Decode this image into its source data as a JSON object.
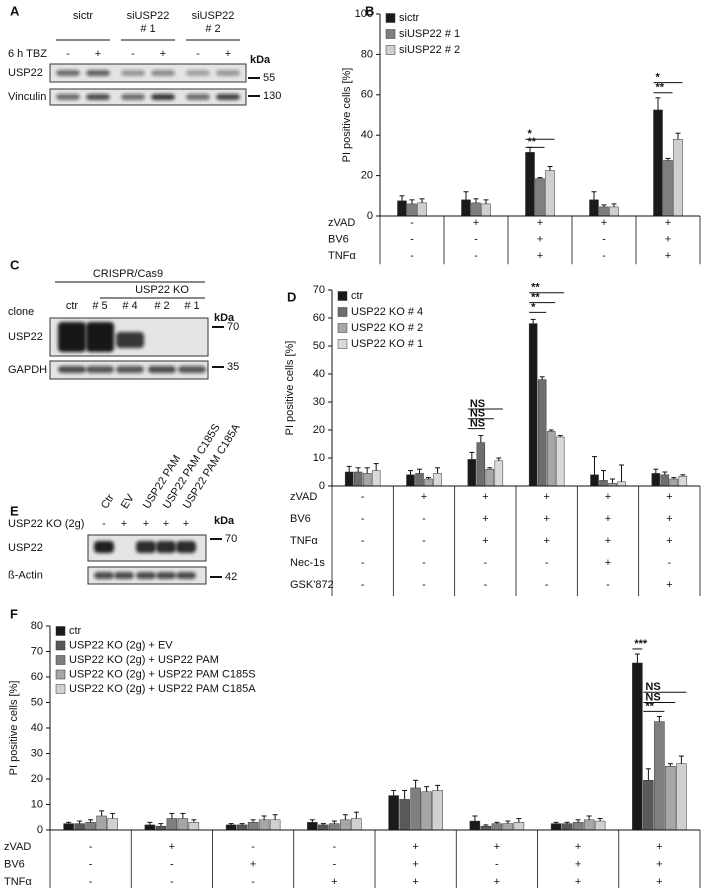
{
  "blot_A": {
    "label": "A",
    "lane_groups": [
      [
        "sictr"
      ],
      [
        "siUSP22",
        "# 1"
      ],
      [
        "siUSP22",
        "# 2"
      ]
    ],
    "treatment": {
      "name": "6 h TBZ",
      "values": [
        "-",
        "+",
        "-",
        "+",
        "-",
        "+"
      ]
    },
    "rows": [
      "USP22",
      "Vinculin"
    ],
    "kda_unit": "kDa",
    "markers": [
      55,
      130
    ]
  },
  "blot_C": {
    "label": "C",
    "method": "CRISPR/Cas9",
    "group": "USP22 KO",
    "lane_title": "clone",
    "lanes": [
      "ctr",
      "# 5",
      "# 4",
      "# 2",
      "# 1"
    ],
    "rows": [
      "USP22",
      "GAPDH"
    ],
    "kda_unit": "kDa",
    "markers": [
      70,
      35
    ]
  },
  "blot_E": {
    "label": "E",
    "lanes": [
      "Ctr",
      "EV",
      "USP22 PAM",
      "USP22 PAM C185S",
      "USP22 PAM C185A"
    ],
    "treatment": {
      "name": "USP22 KO (2g)",
      "values": [
        "-",
        "+",
        "+",
        "+",
        "+"
      ]
    },
    "rows": [
      "USP22",
      "ß-Actin"
    ],
    "kda_unit": "kDa",
    "markers": [
      70,
      42
    ]
  },
  "chart_data": [
    {
      "type": "bar",
      "label": "B",
      "ylabel": "PI positive cells [%]",
      "ylim": [
        0,
        100
      ],
      "yticks": [
        0,
        20,
        40,
        60,
        80,
        100
      ],
      "grid": false,
      "series": [
        {
          "name": "sictr",
          "color": "#1a1a1a",
          "values": [
            7.5,
            8,
            31.5,
            8,
            52.5
          ],
          "errors": [
            2.5,
            4,
            2.5,
            4,
            6
          ]
        },
        {
          "name": "siUSP22 # 1",
          "color": "#7f7f7f",
          "values": [
            6,
            6.5,
            18.5,
            4.5,
            27.5
          ],
          "errors": [
            2,
            2,
            0.5,
            1,
            1
          ]
        },
        {
          "name": "siUSP22 # 2",
          "color": "#cfcfcf",
          "values": [
            6.5,
            6,
            22.5,
            4.5,
            38
          ],
          "errors": [
            2,
            2,
            2,
            1.5,
            3
          ]
        }
      ],
      "conditions": [
        {
          "name": "zVAD",
          "values": [
            "-",
            "+",
            "+",
            "+",
            "+"
          ]
        },
        {
          "name": "BV6",
          "values": [
            "-",
            "-",
            "+",
            "-",
            "+"
          ]
        },
        {
          "name": "TNFα",
          "values": [
            "-",
            "-",
            "+",
            "-",
            "+"
          ]
        }
      ],
      "annotations": [
        "*",
        "**",
        "*",
        "**"
      ]
    },
    {
      "type": "bar",
      "label": "D",
      "ylabel": "PI positive cells [%]",
      "ylim": [
        0,
        70
      ],
      "yticks": [
        0,
        10,
        20,
        30,
        40,
        50,
        60,
        70
      ],
      "grid": false,
      "series": [
        {
          "name": "ctr",
          "color": "#1a1a1a",
          "values": [
            5,
            4,
            9.5,
            58,
            4,
            4.5
          ],
          "errors": [
            2,
            1.5,
            2.5,
            1.5,
            6.5,
            1.5
          ]
        },
        {
          "name": "USP22 KO # 4",
          "color": "#6e6e6e",
          "values": [
            5,
            4.5,
            15.5,
            38,
            2,
            4
          ],
          "errors": [
            1.5,
            1.5,
            2.5,
            1,
            3.5,
            1
          ]
        },
        {
          "name": "USP22 KO # 2",
          "color": "#a6a6a6",
          "values": [
            4.5,
            2.5,
            6,
            19.5,
            1,
            2.5
          ],
          "errors": [
            2,
            0.5,
            0.5,
            0.5,
            1.5,
            0.5
          ]
        },
        {
          "name": "USP22 KO # 1",
          "color": "#d9d9d9",
          "values": [
            5.5,
            4.5,
            9,
            17.5,
            1.5,
            3.5
          ],
          "errors": [
            2.5,
            2,
            1,
            0.5,
            6,
            0.5
          ]
        }
      ],
      "conditions": [
        {
          "name": "zVAD",
          "values": [
            "-",
            "+",
            "+",
            "+",
            "+",
            "+"
          ]
        },
        {
          "name": "BV6",
          "values": [
            "-",
            "-",
            "+",
            "+",
            "+",
            "+"
          ]
        },
        {
          "name": "TNFα",
          "values": [
            "-",
            "-",
            "+",
            "+",
            "+",
            "+"
          ]
        },
        {
          "name": "Nec-1s",
          "values": [
            "-",
            "-",
            "-",
            "-",
            "+",
            "-"
          ]
        },
        {
          "name": "GSK'872",
          "values": [
            "-",
            "-",
            "-",
            "-",
            "-",
            "+"
          ]
        }
      ],
      "annotations": [
        "NS",
        "NS",
        "NS",
        "**",
        "**",
        "*"
      ]
    },
    {
      "type": "bar",
      "label": "F",
      "ylabel": "PI positive cells [%]",
      "ylim": [
        0,
        80
      ],
      "yticks": [
        0,
        10,
        20,
        30,
        40,
        50,
        60,
        70,
        80
      ],
      "grid": false,
      "series": [
        {
          "name": "ctr",
          "color": "#1a1a1a",
          "values": [
            2.5,
            2,
            2,
            3,
            13.5,
            3.5,
            2.5,
            65.5
          ],
          "errors": [
            0.5,
            1,
            0.5,
            1,
            2,
            2,
            0.5,
            3.5
          ]
        },
        {
          "name": "USP22 KO (2g) + EV",
          "color": "#595959",
          "values": [
            2.5,
            1.5,
            2,
            2,
            12,
            1.5,
            2.5,
            19.5
          ],
          "errors": [
            1,
            1,
            0.5,
            0.5,
            3.5,
            0.5,
            0.5,
            4.5
          ]
        },
        {
          "name": "USP22 KO (2g) + USP22 PAM",
          "color": "#7f7f7f",
          "values": [
            3,
            4.5,
            3,
            2.5,
            16.5,
            2.5,
            3,
            42.5
          ],
          "errors": [
            1,
            2,
            1,
            1,
            3,
            0.5,
            1,
            2
          ]
        },
        {
          "name": "USP22 KO (2g) + USP22 PAM C185S",
          "color": "#a6a6a6",
          "values": [
            5.5,
            4.5,
            4,
            4,
            15,
            2.5,
            4,
            25
          ],
          "errors": [
            2,
            2,
            1.5,
            2,
            2,
            1,
            1.5,
            1
          ]
        },
        {
          "name": "USP22 KO (2g) + USP22 PAM C185A",
          "color": "#d0d0d0",
          "values": [
            4.5,
            3,
            4,
            4.5,
            15.5,
            3,
            3.5,
            26
          ],
          "errors": [
            2,
            1,
            2,
            2.5,
            2,
            1.5,
            1,
            3
          ]
        }
      ],
      "conditions": [
        {
          "name": "zVAD",
          "values": [
            "-",
            "+",
            "-",
            "-",
            "+",
            "+",
            "+",
            "+"
          ]
        },
        {
          "name": "BV6",
          "values": [
            "-",
            "-",
            "+",
            "-",
            "+",
            "-",
            "+",
            "+"
          ]
        },
        {
          "name": "TNFα",
          "values": [
            "-",
            "-",
            "-",
            "+",
            "+",
            "+",
            "+",
            "+"
          ]
        }
      ],
      "annotations": [
        "***",
        "NS",
        "NS",
        "**"
      ]
    }
  ]
}
